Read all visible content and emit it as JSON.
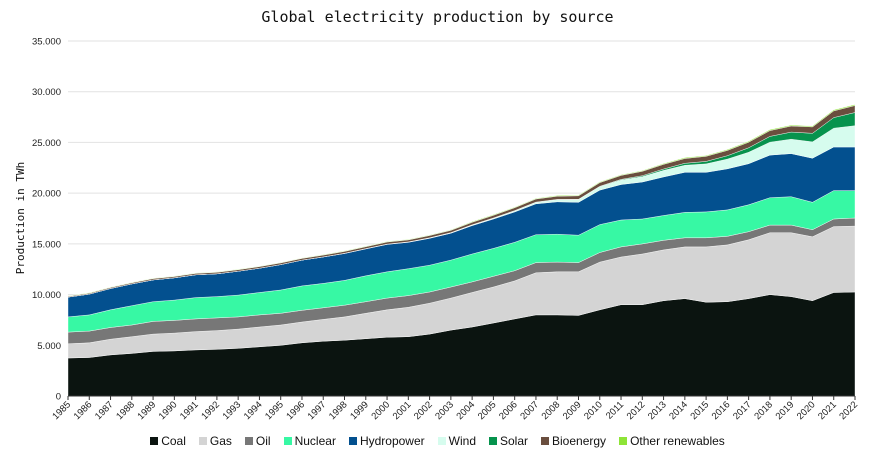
{
  "chart_data": {
    "type": "area",
    "stacked": true,
    "title": "Global electricity production by source",
    "xlabel": "",
    "ylabel": "Production in TWh",
    "ylim": [
      0,
      35000
    ],
    "yticks": [
      0,
      5000,
      10000,
      15000,
      20000,
      25000,
      30000,
      35000
    ],
    "ytick_labels": [
      "0",
      "5.000",
      "10.000",
      "15.000",
      "20.000",
      "25.000",
      "30.000",
      "35.000"
    ],
    "grid": true,
    "legend": "bottom",
    "x": [
      "1985",
      "1986",
      "1987",
      "1988",
      "1989",
      "1990",
      "1991",
      "1992",
      "1993",
      "1994",
      "1995",
      "1996",
      "1997",
      "1998",
      "1999",
      "2000",
      "2001",
      "2002",
      "2003",
      "2004",
      "2005",
      "2006",
      "2007",
      "2008",
      "2009",
      "2010",
      "2011",
      "2012",
      "2013",
      "2014",
      "2015",
      "2016",
      "2017",
      "2018",
      "2019",
      "2020",
      "2021",
      "2022"
    ],
    "series": [
      {
        "name": "Coal",
        "color": "#0b1410",
        "values": [
          3750,
          3800,
          4050,
          4200,
          4400,
          4450,
          4550,
          4600,
          4700,
          4850,
          5000,
          5250,
          5400,
          5500,
          5650,
          5800,
          5850,
          6100,
          6500,
          6800,
          7200,
          7600,
          8000,
          8000,
          7950,
          8500,
          9000,
          9000,
          9400,
          9600,
          9250,
          9300,
          9600,
          10000,
          9800,
          9400,
          10200,
          10250
        ]
      },
      {
        "name": "Gas",
        "color": "#d4d4d4",
        "values": [
          1400,
          1450,
          1550,
          1650,
          1700,
          1750,
          1800,
          1850,
          1900,
          1950,
          2000,
          2050,
          2150,
          2300,
          2500,
          2700,
          2900,
          3050,
          3150,
          3400,
          3550,
          3750,
          4150,
          4250,
          4300,
          4700,
          4700,
          5000,
          5000,
          5100,
          5450,
          5600,
          5800,
          6100,
          6300,
          6300,
          6500,
          6500
        ]
      },
      {
        "name": "Oil",
        "color": "#777777",
        "values": [
          1150,
          1150,
          1150,
          1150,
          1250,
          1250,
          1250,
          1250,
          1200,
          1200,
          1150,
          1150,
          1150,
          1150,
          1150,
          1150,
          1150,
          1100,
          1100,
          1050,
          1050,
          1000,
          1000,
          950,
          900,
          950,
          1000,
          1000,
          950,
          900,
          900,
          850,
          800,
          750,
          750,
          700,
          750,
          800
        ]
      },
      {
        "name": "Nuclear",
        "color": "#37f8a4",
        "values": [
          1500,
          1600,
          1750,
          1900,
          1950,
          2000,
          2100,
          2100,
          2150,
          2200,
          2300,
          2400,
          2400,
          2450,
          2550,
          2600,
          2650,
          2650,
          2650,
          2750,
          2750,
          2800,
          2750,
          2750,
          2700,
          2750,
          2650,
          2450,
          2450,
          2500,
          2550,
          2600,
          2650,
          2700,
          2800,
          2700,
          2800,
          2700
        ]
      },
      {
        "name": "Hydropower",
        "color": "#03508f",
        "values": [
          1950,
          2050,
          2100,
          2150,
          2150,
          2200,
          2250,
          2250,
          2350,
          2400,
          2500,
          2550,
          2600,
          2650,
          2650,
          2700,
          2600,
          2650,
          2650,
          2800,
          2900,
          3000,
          3050,
          3200,
          3250,
          3400,
          3500,
          3650,
          3800,
          3950,
          3900,
          4050,
          4050,
          4200,
          4250,
          4350,
          4300,
          4300
        ]
      },
      {
        "name": "Wind",
        "color": "#d6fcee",
        "values": [
          0,
          0,
          0,
          0,
          0,
          0,
          0,
          0,
          0,
          0,
          0,
          0,
          10,
          20,
          30,
          30,
          40,
          50,
          60,
          80,
          100,
          130,
          170,
          220,
          270,
          340,
          440,
          520,
          640,
          700,
          830,
          960,
          1130,
          1270,
          1420,
          1600,
          1850,
          2100
        ]
      },
      {
        "name": "Solar",
        "color": "#06934d",
        "values": [
          0,
          0,
          0,
          0,
          0,
          0,
          0,
          0,
          0,
          0,
          0,
          0,
          0,
          0,
          0,
          0,
          0,
          0,
          0,
          0,
          0,
          0,
          0,
          10,
          20,
          30,
          60,
          100,
          140,
          190,
          250,
          330,
          440,
          570,
          700,
          850,
          1050,
          1300
        ]
      },
      {
        "name": "Bioenergy",
        "color": "#6a4e3e",
        "values": [
          80,
          90,
          100,
          110,
          120,
          130,
          140,
          150,
          150,
          160,
          170,
          170,
          180,
          190,
          190,
          200,
          200,
          220,
          230,
          250,
          270,
          280,
          300,
          320,
          350,
          370,
          400,
          430,
          460,
          480,
          500,
          520,
          550,
          580,
          600,
          630,
          660,
          690
        ]
      },
      {
        "name": "Other renewables",
        "color": "#8ee437",
        "values": [
          40,
          40,
          40,
          40,
          40,
          40,
          40,
          40,
          40,
          40,
          40,
          40,
          50,
          50,
          50,
          50,
          50,
          50,
          50,
          60,
          60,
          60,
          60,
          70,
          70,
          70,
          70,
          70,
          80,
          80,
          80,
          90,
          90,
          90,
          90,
          90,
          100,
          100
        ]
      }
    ]
  }
}
